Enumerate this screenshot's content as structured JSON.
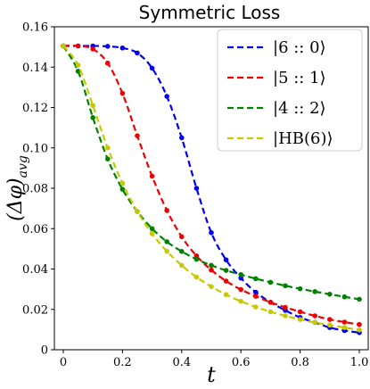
{
  "chart_data": {
    "type": "line",
    "title": "Symmetric Loss",
    "xlabel": "t",
    "ylabel": "(Δφ)avg",
    "ylabel_main": "(Δφ)",
    "ylabel_sub": "avg",
    "xlim": [
      -0.03,
      1.03
    ],
    "ylim": [
      0,
      0.16
    ],
    "x_ticks": [
      0,
      0.2,
      0.4,
      0.6,
      0.8,
      1.0
    ],
    "x_tick_labels": [
      "0",
      "0.2",
      "0.4",
      "0.6",
      "0.8",
      "1.0"
    ],
    "y_ticks": [
      0,
      0.02,
      0.04,
      0.06,
      0.08,
      0.1,
      0.12,
      0.14,
      0.16
    ],
    "y_tick_labels": [
      "0",
      "0.02",
      "0.04",
      "0.06",
      "0.08",
      "0.10",
      "0.12",
      "0.14",
      "0.16"
    ],
    "grid": false,
    "legend_position": "top-right",
    "series": [
      {
        "name": "|6 :: 0⟩",
        "color": "#0000ee",
        "x": [
          0,
          0.05,
          0.1,
          0.15,
          0.2,
          0.25,
          0.3,
          0.35,
          0.4,
          0.45,
          0.5,
          0.55,
          0.6,
          0.65,
          0.7,
          0.75,
          0.8,
          0.85,
          0.9,
          0.95,
          1.0
        ],
        "values": [
          0.1505,
          0.1505,
          0.1505,
          0.1503,
          0.1495,
          0.147,
          0.1395,
          0.1255,
          0.105,
          0.08,
          0.058,
          0.0445,
          0.0355,
          0.0285,
          0.0235,
          0.0195,
          0.016,
          0.0135,
          0.011,
          0.0095,
          0.0085
        ]
      },
      {
        "name": "|5 :: 1⟩",
        "color": "#ee0000",
        "x": [
          0,
          0.05,
          0.1,
          0.15,
          0.2,
          0.25,
          0.3,
          0.35,
          0.4,
          0.45,
          0.5,
          0.55,
          0.6,
          0.65,
          0.7,
          0.75,
          0.8,
          0.85,
          0.9,
          0.95,
          1.0
        ],
        "values": [
          0.1505,
          0.1505,
          0.149,
          0.142,
          0.127,
          0.106,
          0.086,
          0.069,
          0.056,
          0.0465,
          0.0395,
          0.034,
          0.0298,
          0.0265,
          0.0235,
          0.021,
          0.0188,
          0.0168,
          0.015,
          0.0137,
          0.0125
        ]
      },
      {
        "name": "|4 :: 2⟩",
        "color": "#008000",
        "x": [
          0,
          0.05,
          0.1,
          0.15,
          0.2,
          0.25,
          0.3,
          0.35,
          0.4,
          0.45,
          0.5,
          0.55,
          0.6,
          0.65,
          0.7,
          0.75,
          0.8,
          0.85,
          0.9,
          0.95,
          1.0
        ],
        "values": [
          0.1505,
          0.138,
          0.115,
          0.0945,
          0.0795,
          0.0685,
          0.06,
          0.0535,
          0.0487,
          0.0448,
          0.0418,
          0.0393,
          0.0372,
          0.0352,
          0.0334,
          0.0317,
          0.0302,
          0.0288,
          0.0275,
          0.0262,
          0.025
        ]
      },
      {
        "name": "|HB(6)⟩",
        "color": "#c8c800",
        "x": [
          0,
          0.05,
          0.1,
          0.15,
          0.2,
          0.25,
          0.3,
          0.35,
          0.4,
          0.45,
          0.5,
          0.55,
          0.6,
          0.65,
          0.7,
          0.75,
          0.8,
          0.85,
          0.9,
          0.95,
          1.0
        ],
        "values": [
          0.1505,
          0.141,
          0.121,
          0.1,
          0.0825,
          0.0685,
          0.0575,
          0.0488,
          0.0418,
          0.036,
          0.0313,
          0.0273,
          0.024,
          0.0212,
          0.0188,
          0.0168,
          0.015,
          0.0135,
          0.0122,
          0.011,
          0.0098
        ]
      }
    ]
  }
}
